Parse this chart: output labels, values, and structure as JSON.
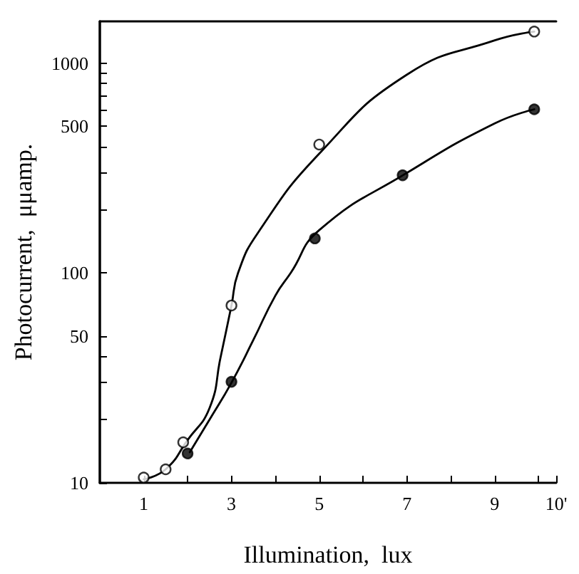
{
  "chart_data": {
    "type": "scatter",
    "xlabel": "Illumination,  lux",
    "ylabel": "Photocurrent,  μμamp.",
    "xlim": [
      0,
      10.4
    ],
    "xticks": [
      1,
      {
        "value": 2,
        "label": null
      },
      3,
      {
        "value": 4,
        "label": null
      },
      5,
      {
        "value": 6,
        "label": null
      },
      7,
      {
        "value": 8,
        "label": null
      },
      9,
      {
        "value": 10,
        "label": null
      },
      {
        "value": 10.4,
        "label": "10'"
      }
    ],
    "ylim": [
      10,
      1580
    ],
    "yticks": [
      10,
      {
        "value": 20,
        "label": null
      },
      {
        "value": 30,
        "label": null
      },
      {
        "value": 40,
        "label": null
      },
      50,
      100,
      {
        "value": 200,
        "label": null
      },
      {
        "value": 300,
        "label": null
      },
      {
        "value": 400,
        "label": null
      },
      500,
      {
        "value": 600,
        "label": null
      },
      {
        "value": 700,
        "label": null
      },
      {
        "value": 800,
        "label": null
      },
      {
        "value": 900,
        "label": null
      },
      1000
    ],
    "log": "y",
    "grid": false,
    "series": [
      {
        "type": "line",
        "marker": "none",
        "color": "#000000",
        "x": [
          1,
          1.5,
          2,
          2.5,
          2.75,
          3,
          3.15,
          3.6,
          5,
          7,
          9,
          9.9
        ],
        "values": [
          10.4,
          11.6,
          16,
          22.7,
          39.5,
          70,
          100,
          155,
          370,
          881,
          1283,
          1413
        ]
      },
      {
        "type": "line",
        "marker": "none",
        "color": "#000000",
        "x": [
          2.05,
          2.5,
          3,
          3.5,
          4,
          4.35,
          5,
          7,
          9,
          9.9
        ],
        "values": [
          14,
          20,
          30,
          48,
          78,
          100,
          160,
          300,
          516,
          602
        ]
      },
      {
        "marker": "circle",
        "color": "#ffffff",
        "x": [
          1,
          1.5,
          1.9,
          3,
          5,
          9.9
        ],
        "values": [
          10.6,
          11.6,
          15.6,
          70,
          409,
          1413
        ]
      },
      {
        "marker": "circle",
        "color": "#000000",
        "x": [
          2,
          3,
          4.9,
          6.9,
          9.9
        ],
        "values": [
          13.8,
          30.3,
          146,
          292,
          602
        ]
      }
    ]
  }
}
